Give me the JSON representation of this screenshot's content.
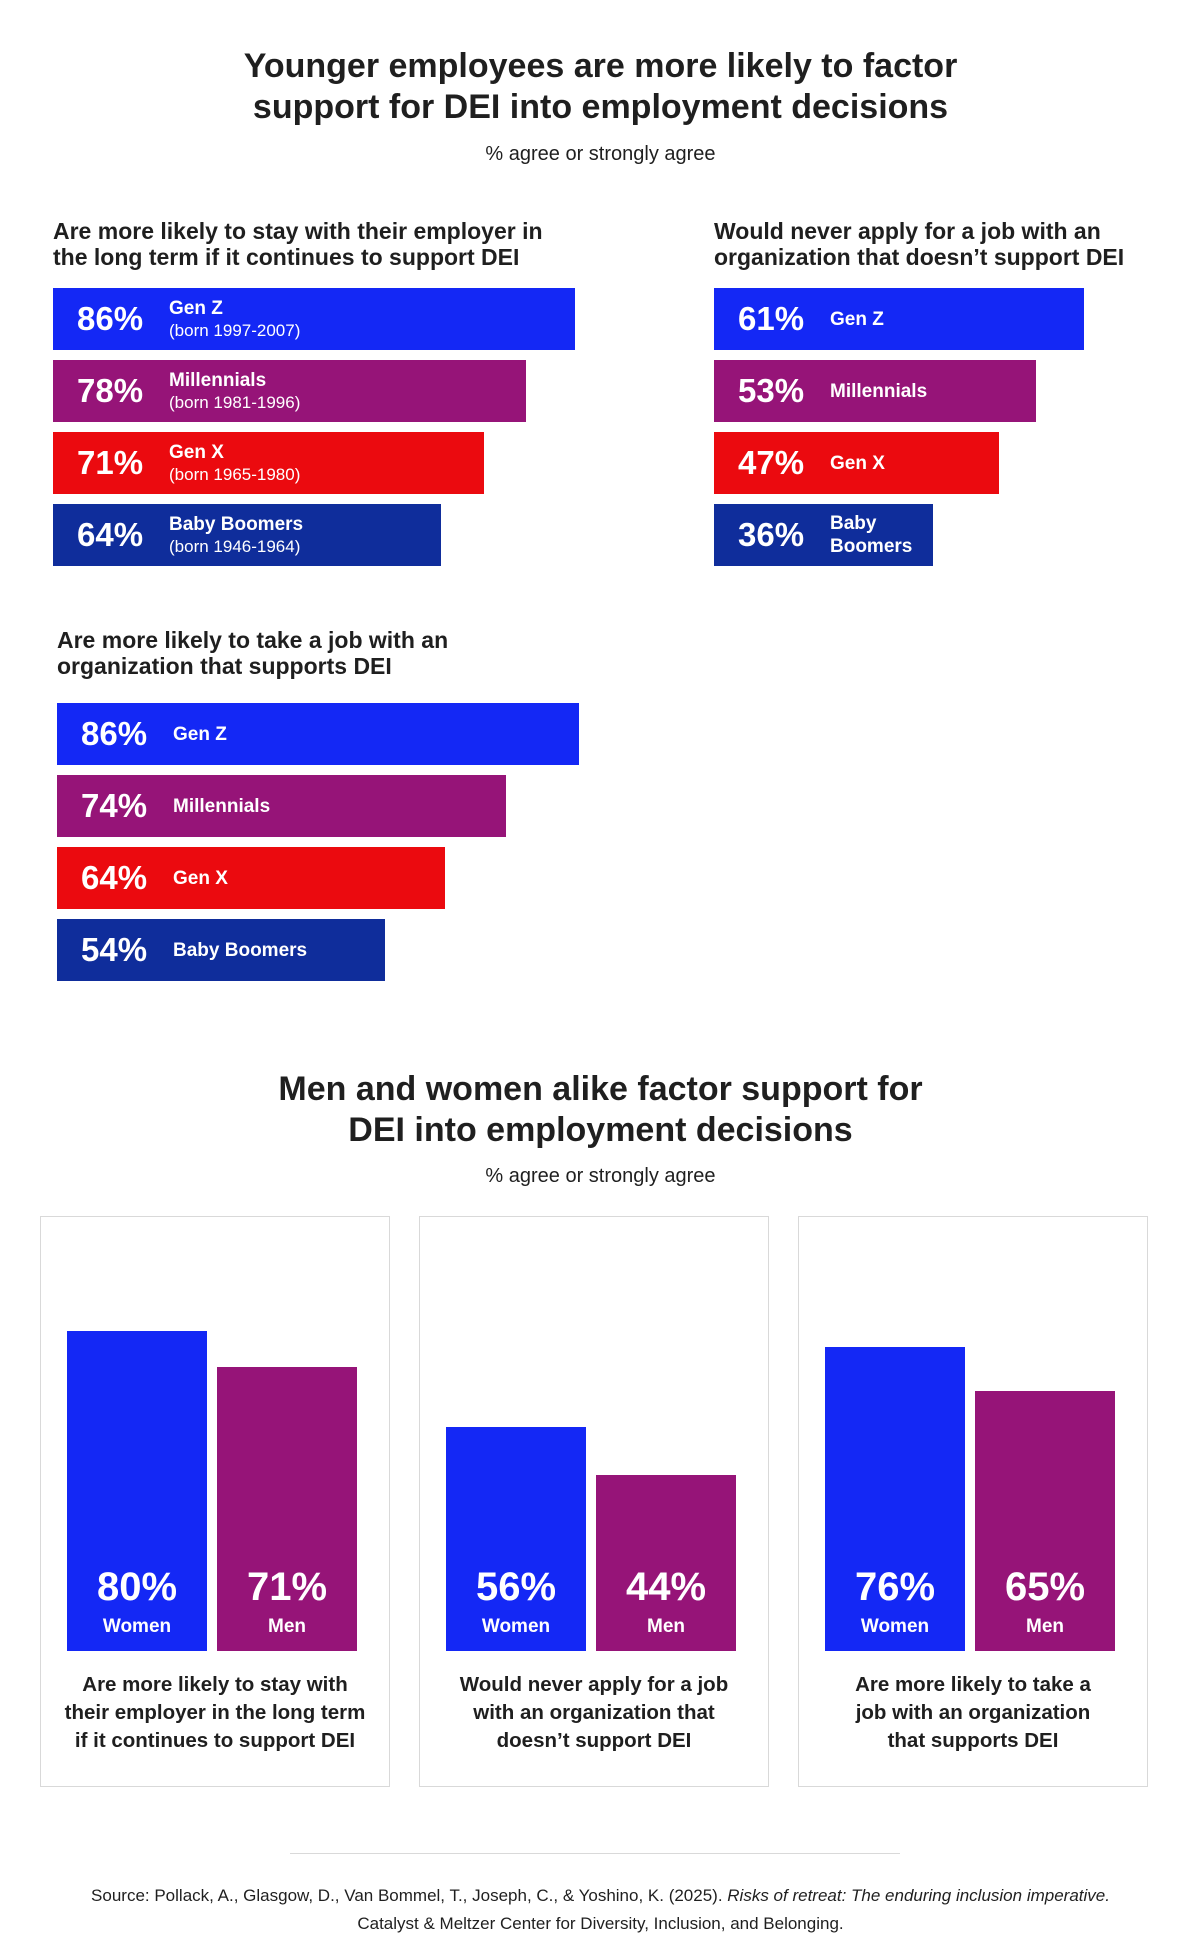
{
  "header1": {
    "title_lines": [
      "Younger employees are more likely to factor",
      "support for DEI into employment decisions"
    ],
    "subtitle": "% agree or strongly agree"
  },
  "header2": {
    "title_lines": [
      "Men and women alike factor support for",
      "DEI into employment decisions"
    ],
    "subtitle": "% agree or strongly agree"
  },
  "colors": {
    "gen_z": "#1428f5",
    "millennials": "#961478",
    "gen_x": "#eb0a0f",
    "baby_boomers": "#0f2d9b",
    "women": "#1428f5",
    "men": "#961478"
  },
  "chart_data": [
    {
      "type": "bar",
      "orientation": "horizontal",
      "title_lines": [
        "Are more likely to stay with their employer in",
        "the long term if it continues to support DEI"
      ],
      "categories": [
        "Gen Z",
        "Millennials",
        "Gen X",
        "Baby Boomers"
      ],
      "category_notes": [
        "(born 1997-2007)",
        "(born 1981-1996)",
        "(born 1965-1980)",
        "(born 1946-1964)"
      ],
      "values": [
        86,
        78,
        71,
        64
      ],
      "value_labels": [
        "86%",
        "78%",
        "71%",
        "64%"
      ],
      "xlim": [
        0,
        86
      ]
    },
    {
      "type": "bar",
      "orientation": "horizontal",
      "title_lines": [
        "Would never apply for a job with an",
        "organization that doesn’t support DEI"
      ],
      "categories": [
        "Gen Z",
        "Millennials",
        "Gen X",
        "Baby Boomers"
      ],
      "values": [
        61,
        53,
        47,
        36
      ],
      "value_labels": [
        "61%",
        "53%",
        "47%",
        "36%"
      ],
      "xlim": [
        0,
        86
      ]
    },
    {
      "type": "bar",
      "orientation": "horizontal",
      "title_lines": [
        "Are more likely to take a job with an",
        "organization that supports DEI"
      ],
      "categories": [
        "Gen Z",
        "Millennials",
        "Gen X",
        "Baby Boomers"
      ],
      "values": [
        86,
        74,
        64,
        54
      ],
      "value_labels": [
        "86%",
        "74%",
        "64%",
        "54%"
      ],
      "xlim": [
        0,
        86
      ]
    },
    {
      "type": "bar",
      "orientation": "vertical",
      "caption_lines": [
        "Are more likely to stay with",
        "their employer in the long term",
        "if it continues to support DEI"
      ],
      "categories": [
        "Women",
        "Men"
      ],
      "values": [
        80,
        71
      ],
      "value_labels": [
        "80%",
        "71%"
      ],
      "ylim": [
        0,
        100
      ]
    },
    {
      "type": "bar",
      "orientation": "vertical",
      "caption_lines": [
        "Would never apply for a job",
        "with an organization that",
        "doesn’t support DEI"
      ],
      "categories": [
        "Women",
        "Men"
      ],
      "values": [
        56,
        44
      ],
      "value_labels": [
        "56%",
        "44%"
      ],
      "ylim": [
        0,
        100
      ]
    },
    {
      "type": "bar",
      "orientation": "vertical",
      "caption_lines": [
        "Are more likely to take a",
        "job with an organization",
        "that supports DEI"
      ],
      "categories": [
        "Women",
        "Men"
      ],
      "values": [
        76,
        65
      ],
      "value_labels": [
        "76%",
        "65%"
      ],
      "ylim": [
        0,
        100
      ]
    }
  ],
  "source": {
    "line1_prefix": "Source: Pollack, A., Glasgow, D., Van Bommel, T., Joseph, C., & Yoshino, K. (2025). ",
    "line1_title": "Risks of retreat: The enduring inclusion imperative.",
    "line2": "Catalyst & Meltzer Center for Diversity, Inclusion, and Belonging."
  }
}
